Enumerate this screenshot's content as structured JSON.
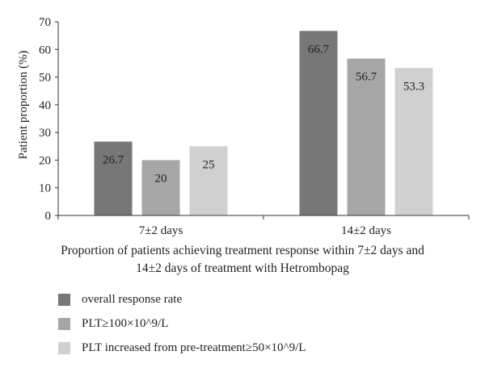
{
  "chart_data": {
    "type": "bar",
    "ylabel": "Patient proportion (%)",
    "xlabel_lines": [
      "Proportion of patients achieving treatment response within 7±2 days and",
      "14±2 days of treatment with Hetrombopag"
    ],
    "categories": [
      "7±2 days",
      "14±2 days"
    ],
    "ylim": [
      0,
      70
    ],
    "yticks": [
      0,
      10,
      20,
      30,
      40,
      50,
      60,
      70
    ],
    "grid": false,
    "legend_position": "bottom-left",
    "series": [
      {
        "name": "overall response rate",
        "color": "#777777",
        "values": [
          26.7,
          66.7
        ],
        "labels": [
          "26.7",
          "66.7"
        ]
      },
      {
        "name": "PLT≥100×10^9/L",
        "color": "#a6a6a6",
        "values": [
          20,
          56.7
        ],
        "labels": [
          "20",
          "56.7"
        ]
      },
      {
        "name": "PLT increased from pre-treatment≥50×10^9/L",
        "color": "#d0d0d0",
        "values": [
          25,
          53.3
        ],
        "labels": [
          "25",
          "53.3"
        ]
      }
    ]
  }
}
